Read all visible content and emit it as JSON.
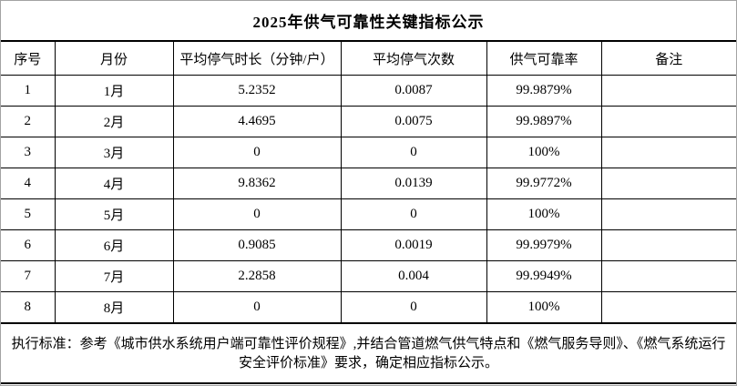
{
  "title": "2025年供气可靠性关键指标公示",
  "table": {
    "headers": [
      "序号",
      "月份",
      "平均停气时长（分钟/户）",
      "平均停气次数",
      "供气可靠率",
      "备注"
    ],
    "rows": [
      [
        "1",
        "1月",
        "5.2352",
        "0.0087",
        "99.9879%",
        ""
      ],
      [
        "2",
        "2月",
        "4.4695",
        "0.0075",
        "99.9897%",
        ""
      ],
      [
        "3",
        "3月",
        "0",
        "0",
        "100%",
        ""
      ],
      [
        "4",
        "4月",
        "9.8362",
        "0.0139",
        "99.9772%",
        ""
      ],
      [
        "5",
        "5月",
        "0",
        "0",
        "100%",
        ""
      ],
      [
        "6",
        "6月",
        "0.9085",
        "0.0019",
        "99.9979%",
        ""
      ],
      [
        "7",
        "7月",
        "2.2858",
        "0.004",
        "99.9949%",
        ""
      ],
      [
        "8",
        "8月",
        "0",
        "0",
        "100%",
        ""
      ]
    ]
  },
  "footer": {
    "note": "执行标准：参考《城市供水系统用户端可靠性评价规程》,并结合管道燃气供气特点和《燃气服务导则》、《燃气系统运行安全评价标准》要求，确定相应指标公示。"
  }
}
